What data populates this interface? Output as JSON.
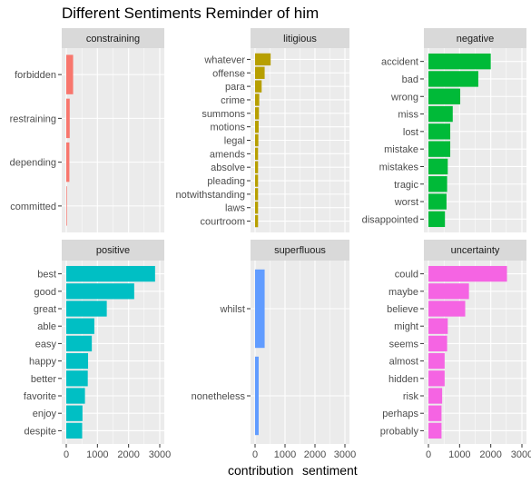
{
  "chart_data": {
    "type": "bar",
    "orientation": "horizontal",
    "title": "Different Sentiments Reminder of him",
    "xlabel": "contribution",
    "ylabel": "",
    "facet_variable": "sentiment",
    "x_ticks": [
      0,
      1000,
      2000,
      3000
    ],
    "xlim": [
      0,
      3000
    ],
    "grid": true,
    "legend": "none",
    "panels": [
      {
        "name": "constraining",
        "color": "#F8766D",
        "categories": [
          "forbidden",
          "restraining",
          "depending",
          "committed"
        ],
        "values": [
          220,
          110,
          100,
          20
        ]
      },
      {
        "name": "litigious",
        "color": "#B79F00",
        "categories": [
          "whatever",
          "offense",
          "para",
          "crime",
          "summons",
          "motions",
          "legal",
          "amends",
          "absolve",
          "pleading",
          "notwithstanding",
          "laws",
          "courtroom"
        ],
        "values": [
          520,
          320,
          220,
          140,
          130,
          120,
          110,
          100,
          100,
          100,
          100,
          100,
          100
        ]
      },
      {
        "name": "negative",
        "color": "#00BA38",
        "categories": [
          "accident",
          "bad",
          "wrong",
          "miss",
          "lost",
          "mistake",
          "mistakes",
          "tragic",
          "worst",
          "disappointed"
        ],
        "values": [
          2000,
          1600,
          1020,
          780,
          700,
          700,
          620,
          600,
          580,
          530
        ]
      },
      {
        "name": "positive",
        "color": "#00BFC4",
        "categories": [
          "best",
          "good",
          "great",
          "able",
          "easy",
          "happy",
          "better",
          "favorite",
          "enjoy",
          "despite"
        ],
        "values": [
          2850,
          2180,
          1300,
          900,
          820,
          700,
          690,
          600,
          520,
          510
        ]
      },
      {
        "name": "superfluous",
        "color": "#619CFF",
        "categories": [
          "whilst",
          "nonetheless"
        ],
        "values": [
          320,
          120
        ]
      },
      {
        "name": "uncertainty",
        "color": "#F564E3",
        "categories": [
          "could",
          "maybe",
          "believe",
          "might",
          "seems",
          "almost",
          "hidden",
          "risk",
          "perhaps",
          "probably"
        ],
        "values": [
          2520,
          1300,
          1180,
          620,
          600,
          520,
          520,
          440,
          420,
          420
        ]
      }
    ],
    "right_axis_label": "sentiment"
  }
}
